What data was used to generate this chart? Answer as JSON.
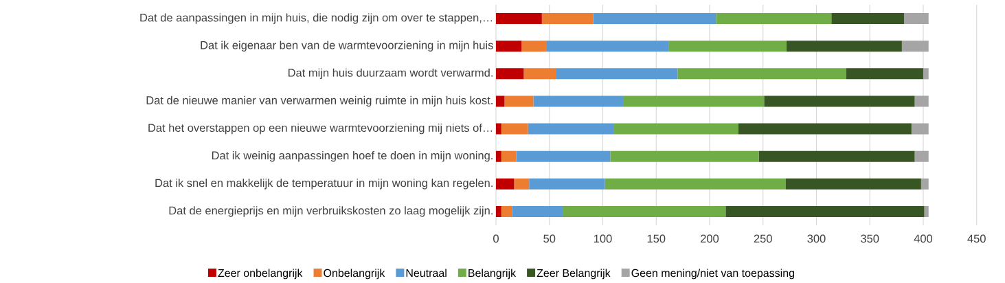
{
  "chart_data": {
    "type": "bar",
    "orientation": "horizontal",
    "stacked": true,
    "categories": [
      "Dat de aanpassingen in mijn huis, die nodig zijn om over te stappen,…",
      "Dat ik eigenaar ben van de warmtevoorziening in mijn huis",
      "Dat mijn huis duurzaam wordt verwarmd.",
      "Dat de nieuwe manier van verwarmen weinig ruimte in mijn huis kost.",
      "Dat het overstappen op een nieuwe warmtevoorziening mij niets of…",
      "Dat ik weinig aanpassingen hoef te doen in mijn woning.",
      "Dat ik snel en makkelijk de temperatuur in mijn woning kan regelen.",
      "Dat de energieprijs en mijn verbruikskosten zo laag mogelijk zijn."
    ],
    "series": [
      {
        "name": "Zeer onbelangrijk",
        "color": "#c00000",
        "values": [
          43,
          24,
          26,
          8,
          5,
          5,
          17,
          5
        ]
      },
      {
        "name": "Onbelangrijk",
        "color": "#ed7d31",
        "values": [
          48,
          23,
          30,
          27,
          25,
          14,
          14,
          10
        ]
      },
      {
        "name": "Neutraal",
        "color": "#5b9bd5",
        "values": [
          115,
          115,
          114,
          84,
          80,
          88,
          71,
          48
        ]
      },
      {
        "name": "Belangrijk",
        "color": "#70ad47",
        "values": [
          108,
          110,
          158,
          132,
          117,
          139,
          169,
          152
        ]
      },
      {
        "name": "Zeer Belangrijk",
        "color": "#375623",
        "values": [
          68,
          108,
          72,
          141,
          162,
          146,
          127,
          186
        ]
      },
      {
        "name": "Geen mening/niet van toepassing",
        "color": "#a5a5a5",
        "values": [
          23,
          25,
          5,
          13,
          16,
          13,
          7,
          4
        ]
      }
    ],
    "xlim": [
      0,
      450
    ],
    "xticks": [
      0,
      50,
      100,
      150,
      200,
      250,
      300,
      350,
      400,
      450
    ],
    "grid": "x",
    "legend": "bottom"
  }
}
